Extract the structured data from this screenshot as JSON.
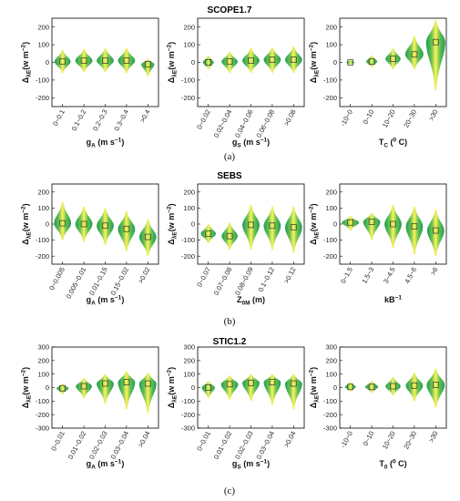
{
  "colors": {
    "violin_edge": "#1e9b52",
    "violin_mid": "#66c152",
    "violin_core": "#fff35a",
    "frame": "#000000"
  },
  "rows": [
    {
      "title": "SCOPE1.7",
      "caption": "(a)",
      "ylim": [
        -250,
        250
      ],
      "yticks": [
        200,
        100,
        0,
        -100,
        -200
      ],
      "ylabel_main": "Δ",
      "ylabel_sub": "λE",
      "ylabel_unit": "(w m",
      "ylabel_sup": "−2",
      "ylabel_close": ")",
      "panels": [
        {
          "xlabel_main": "g",
          "xlabel_sub": "A",
          "xlabel_unit": " (m s",
          "xlabel_sup": "−1",
          "xlabel_close": ")",
          "categories": [
            "0~0.1",
            "0.1~0.2",
            "0.2~0.3",
            "0.3~0.4",
            ">0.4"
          ],
          "violins": [
            {
              "median": 5,
              "low": -60,
              "high": 70,
              "width": 0.75
            },
            {
              "median": 10,
              "low": -55,
              "high": 75,
              "width": 0.8
            },
            {
              "median": 10,
              "low": -55,
              "high": 80,
              "width": 0.8
            },
            {
              "median": 10,
              "low": -60,
              "high": 80,
              "width": 0.8
            },
            {
              "median": -10,
              "low": -80,
              "high": 20,
              "width": 0.6
            }
          ]
        },
        {
          "xlabel_main": "g",
          "xlabel_sub": "S",
          "xlabel_unit": " (m s",
          "xlabel_sup": "−1",
          "xlabel_close": ")",
          "categories": [
            "0~0.02",
            "0.02~0.04",
            "0.04~0.06",
            "0.06~0.08",
            ">0.08"
          ],
          "violins": [
            {
              "median": 0,
              "low": -40,
              "high": 40,
              "width": 0.5
            },
            {
              "median": 5,
              "low": -60,
              "high": 60,
              "width": 0.75
            },
            {
              "median": 10,
              "low": -60,
              "high": 80,
              "width": 0.8
            },
            {
              "median": 15,
              "low": -60,
              "high": 85,
              "width": 0.8
            },
            {
              "median": 15,
              "low": -60,
              "high": 90,
              "width": 0.8
            }
          ]
        },
        {
          "xlabel_main": "T",
          "xlabel_sub": "C",
          "xlabel_unit": " (",
          "xlabel_sup": "0",
          "xlabel_close": " C)",
          "categories": [
            "-10~0",
            "0~10",
            "10~20",
            "20~30",
            ">30"
          ],
          "violins": [
            {
              "median": 0,
              "low": -15,
              "high": 15,
              "width": 0.35
            },
            {
              "median": 5,
              "low": -30,
              "high": 40,
              "width": 0.5
            },
            {
              "median": 20,
              "low": -40,
              "high": 80,
              "width": 0.7
            },
            {
              "median": 45,
              "low": -40,
              "high": 150,
              "width": 0.85
            },
            {
              "median": 115,
              "low": -160,
              "high": 240,
              "width": 0.9
            }
          ]
        }
      ]
    },
    {
      "title": "SEBS",
      "caption": "(b)",
      "ylim": [
        -250,
        250
      ],
      "yticks": [
        200,
        100,
        0,
        -100,
        -200
      ],
      "ylabel_main": "Δ",
      "ylabel_sub": "λE",
      "ylabel_unit": "(w m",
      "ylabel_sup": "−2",
      "ylabel_close": ")",
      "panels": [
        {
          "xlabel_main": "g",
          "xlabel_sub": "A",
          "xlabel_unit": " (m s",
          "xlabel_sup": "−1",
          "xlabel_close": ")",
          "categories": [
            "0~0.005",
            "0.005~0.01",
            "0.01~0.15",
            "0.15~0.02",
            ">0.02"
          ],
          "violins": [
            {
              "median": 5,
              "low": -100,
              "high": 140,
              "width": 0.8
            },
            {
              "median": 0,
              "low": -110,
              "high": 110,
              "width": 0.8
            },
            {
              "median": -10,
              "low": -130,
              "high": 100,
              "width": 0.8
            },
            {
              "median": -30,
              "low": -170,
              "high": 80,
              "width": 0.8
            },
            {
              "median": -80,
              "low": -200,
              "high": 30,
              "width": 0.8
            }
          ]
        },
        {
          "xlabel_main": "Z",
          "xlabel_sub": "0M",
          "xlabel_unit": " (m)",
          "xlabel_sup": "",
          "xlabel_close": "",
          "categories": [
            "0~0.07",
            "0.07~0.08",
            "0.08~0.09",
            "0.1~0.12",
            ">0.12"
          ],
          "violins": [
            {
              "median": -60,
              "low": -120,
              "high": 0,
              "width": 0.7
            },
            {
              "median": -75,
              "low": -160,
              "high": 10,
              "width": 0.75
            },
            {
              "median": -5,
              "low": -160,
              "high": 120,
              "width": 0.8
            },
            {
              "median": -10,
              "low": -160,
              "high": 110,
              "width": 0.8
            },
            {
              "median": -20,
              "low": -180,
              "high": 110,
              "width": 0.8
            }
          ]
        },
        {
          "xlabel_main": "kB",
          "xlabel_sub": "",
          "xlabel_unit": "",
          "xlabel_sup": "−1",
          "xlabel_close": "",
          "categories": [
            "0~1.5",
            "1.5~3",
            "3~4.5",
            "4.5~6",
            ">6"
          ],
          "violins": [
            {
              "median": 10,
              "low": -40,
              "high": 50,
              "width": 0.8
            },
            {
              "median": 15,
              "low": -100,
              "high": 70,
              "width": 0.8
            },
            {
              "median": 0,
              "low": -150,
              "high": 120,
              "width": 0.8
            },
            {
              "median": -15,
              "low": -190,
              "high": 110,
              "width": 0.8
            },
            {
              "median": -40,
              "low": -200,
              "high": 90,
              "width": 0.8
            }
          ]
        }
      ]
    },
    {
      "title": "STIC1.2",
      "caption": "(c)",
      "ylim": [
        -300,
        300
      ],
      "yticks": [
        300,
        200,
        100,
        0,
        -100,
        -200,
        -300
      ],
      "ylabel_main": "Δ",
      "ylabel_sub": "λE",
      "ylabel_unit": "(w m",
      "ylabel_sup": "−2",
      "ylabel_close": ")",
      "panels": [
        {
          "xlabel_main": "g",
          "xlabel_sub": "A",
          "xlabel_unit": " (m s",
          "xlabel_sup": "−1",
          "xlabel_close": ")",
          "categories": [
            "0~0.01",
            "0.01~0.02",
            "0.02~0.03",
            "0.03~0.04",
            ">0.04"
          ],
          "violins": [
            {
              "median": -5,
              "low": -50,
              "high": 30,
              "width": 0.55
            },
            {
              "median": 10,
              "low": -80,
              "high": 70,
              "width": 0.75
            },
            {
              "median": 30,
              "low": -120,
              "high": 100,
              "width": 0.8
            },
            {
              "median": 40,
              "low": -160,
              "high": 120,
              "width": 0.8
            },
            {
              "median": 30,
              "low": -190,
              "high": 110,
              "width": 0.8
            }
          ]
        },
        {
          "xlabel_main": "g",
          "xlabel_sub": "S",
          "xlabel_unit": " (m s",
          "xlabel_sup": "−1",
          "xlabel_close": ")",
          "categories": [
            "0~0.01",
            "0.01~0.02",
            "0.02~0.03",
            "0.03~0.04",
            ">0.04"
          ],
          "violins": [
            {
              "median": 0,
              "low": -80,
              "high": 50,
              "width": 0.6
            },
            {
              "median": 25,
              "low": -90,
              "high": 90,
              "width": 0.8
            },
            {
              "median": 35,
              "low": -100,
              "high": 100,
              "width": 0.8
            },
            {
              "median": 40,
              "low": -130,
              "high": 100,
              "width": 0.8
            },
            {
              "median": 30,
              "low": -160,
              "high": 100,
              "width": 0.8
            }
          ]
        },
        {
          "xlabel_main": "T",
          "xlabel_sub": "0",
          "xlabel_unit": " (",
          "xlabel_sup": "0",
          "xlabel_close": " C)",
          "categories": [
            "-10~0",
            "0~10",
            "10~20",
            "20~30",
            ">30"
          ],
          "violins": [
            {
              "median": 5,
              "low": -30,
              "high": 40,
              "width": 0.5
            },
            {
              "median": 5,
              "low": -40,
              "high": 50,
              "width": 0.6
            },
            {
              "median": 10,
              "low": -60,
              "high": 80,
              "width": 0.7
            },
            {
              "median": 15,
              "low": -100,
              "high": 110,
              "width": 0.8
            },
            {
              "median": 20,
              "low": -150,
              "high": 140,
              "width": 0.85
            }
          ]
        }
      ]
    }
  ]
}
